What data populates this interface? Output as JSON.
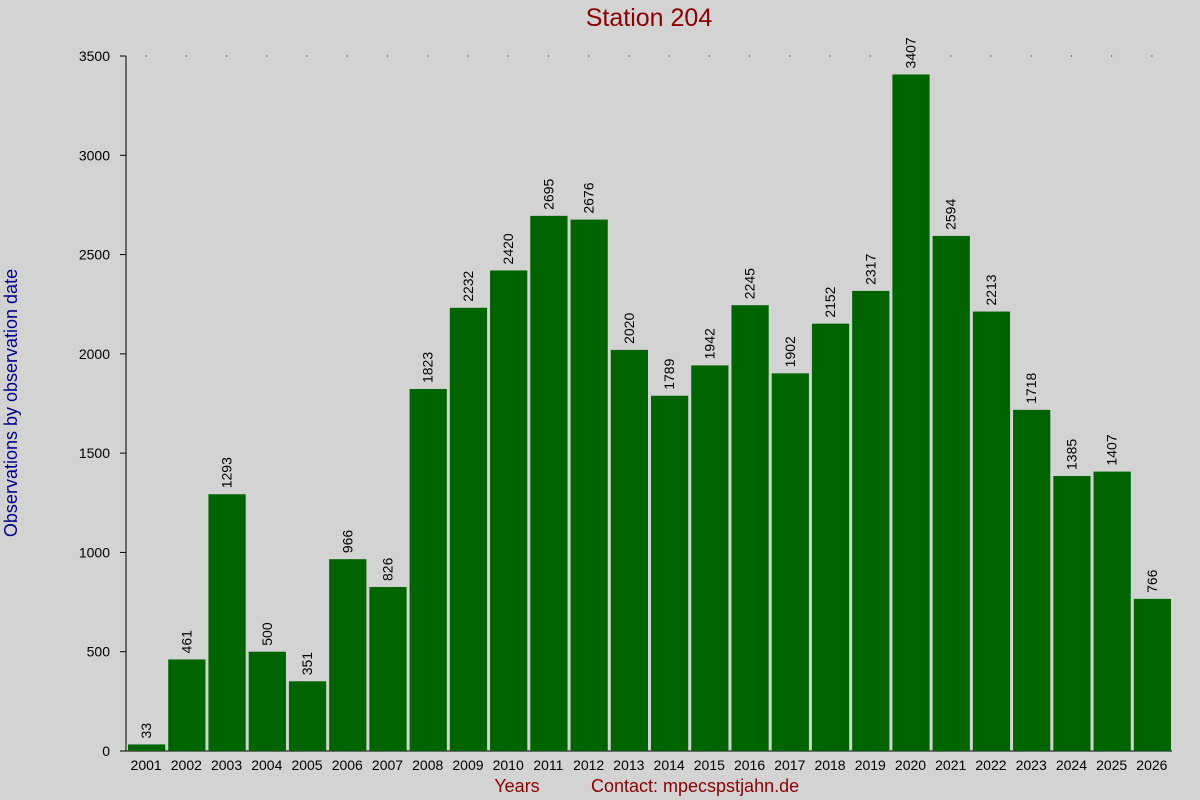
{
  "chart_data": {
    "type": "bar",
    "title": "Station 204",
    "xlabel": "Years",
    "ylabel": "Observations by observation date",
    "contact": "Contact: mpecspstjahn.de",
    "categories": [
      "2001",
      "2002",
      "2003",
      "2004",
      "2005",
      "2006",
      "2007",
      "2008",
      "2009",
      "2010",
      "2011",
      "2012",
      "2013",
      "2014",
      "2015",
      "2016",
      "2017",
      "2018",
      "2019",
      "2020",
      "2021",
      "2022",
      "2023",
      "2024",
      "2025",
      "2026"
    ],
    "values": [
      33,
      461,
      1293,
      500,
      351,
      966,
      826,
      1823,
      2232,
      2420,
      2695,
      2676,
      2020,
      1789,
      1942,
      2245,
      1902,
      2152,
      2317,
      3407,
      2594,
      2213,
      1718,
      1385,
      1407,
      766
    ],
    "ylim": [
      0,
      3500
    ],
    "yticks": [
      0,
      500,
      1000,
      1500,
      2000,
      2500,
      3000,
      3500
    ],
    "bar_color": "#006400",
    "background_color": "#d3d3d3",
    "title_color": "#8b0000",
    "ylabel_color": "#00008b",
    "grid": false,
    "legend": "none"
  }
}
